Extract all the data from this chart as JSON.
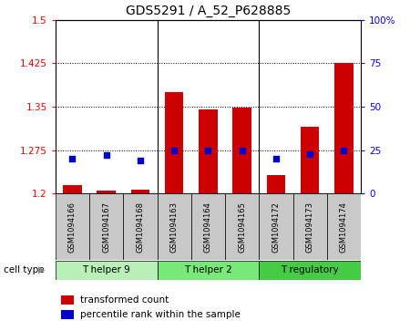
{
  "title": "GDS5291 / A_52_P628885",
  "samples": [
    "GSM1094166",
    "GSM1094167",
    "GSM1094168",
    "GSM1094163",
    "GSM1094164",
    "GSM1094165",
    "GSM1094172",
    "GSM1094173",
    "GSM1094174"
  ],
  "transformed_count": [
    1.215,
    1.205,
    1.207,
    1.375,
    1.345,
    1.348,
    1.232,
    1.315,
    1.425
  ],
  "percentile_rank": [
    20,
    22,
    19,
    25,
    25,
    25,
    20,
    23,
    25
  ],
  "ylim_left": [
    1.2,
    1.5
  ],
  "ylim_right": [
    0,
    100
  ],
  "yticks_left": [
    1.2,
    1.275,
    1.35,
    1.425,
    1.5
  ],
  "yticks_right": [
    0,
    25,
    50,
    75,
    100
  ],
  "ytick_labels_left": [
    "1.2",
    "1.275",
    "1.35",
    "1.425",
    "1.5"
  ],
  "ytick_labels_right": [
    "0",
    "25",
    "50",
    "75",
    "100%"
  ],
  "bar_color": "#cc0000",
  "scatter_color": "#0000cc",
  "bar_width": 0.55,
  "cell_types": [
    {
      "label": "T helper 9",
      "indices": [
        0,
        1,
        2
      ],
      "color": "#b8f0b8"
    },
    {
      "label": "T helper 2",
      "indices": [
        3,
        4,
        5
      ],
      "color": "#78e878"
    },
    {
      "label": "T regulatory",
      "indices": [
        6,
        7,
        8
      ],
      "color": "#44cc44"
    }
  ],
  "cell_type_label": "cell type",
  "legend_bar_label": "transformed count",
  "legend_scatter_label": "percentile rank within the sample",
  "background_color": "#ffffff",
  "tick_bg_color": "#c8c8c8",
  "title_fontsize": 10,
  "tick_fontsize": 7.5,
  "label_fontsize": 7.5
}
